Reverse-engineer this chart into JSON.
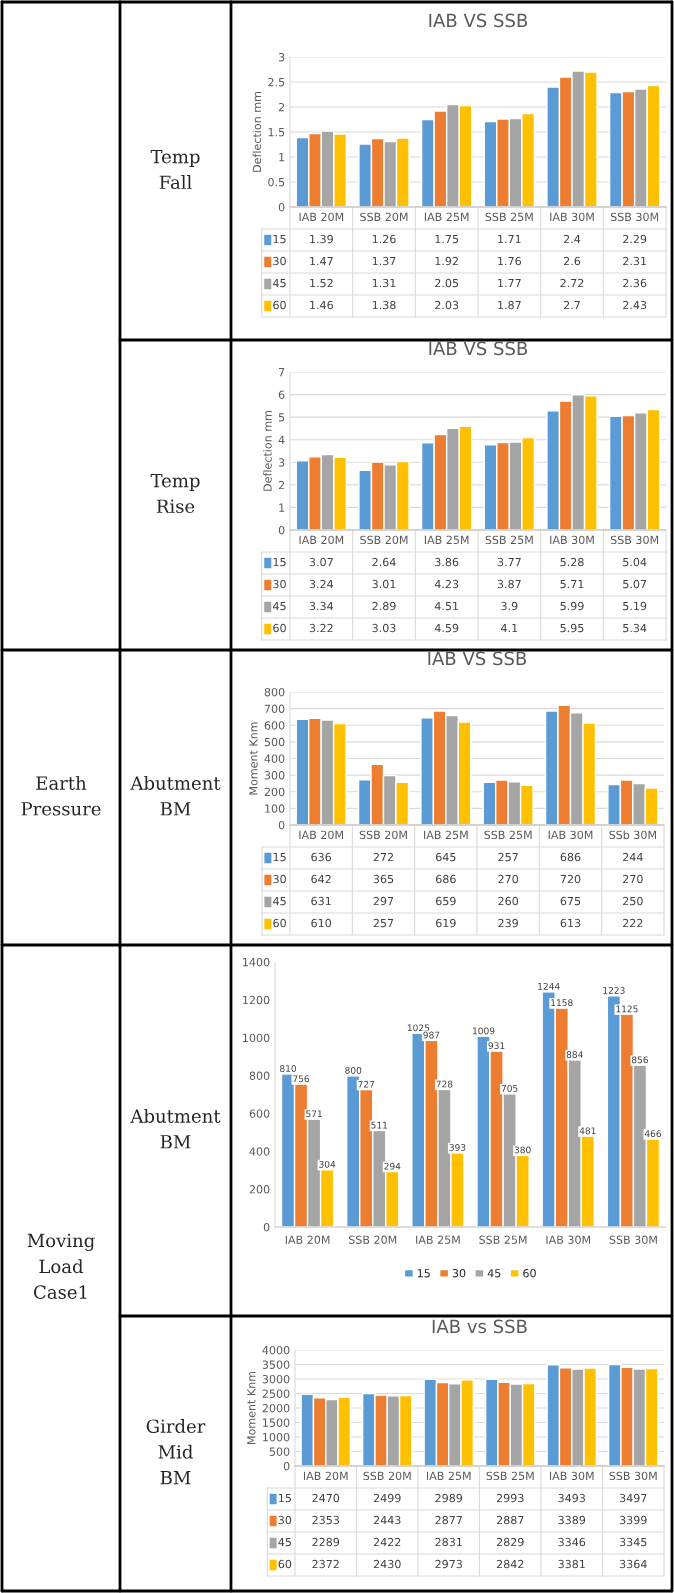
{
  "chart_data": [
    {
      "type": "bar",
      "title": "IAB VS SSB",
      "ylabel": "Deflection mm",
      "categories": [
        "IAB 20M",
        "SSB 20M",
        "IAB 25M",
        "SSB 25M",
        "IAB 30M",
        "SSB 30M"
      ],
      "series": [
        {
          "name": "15",
          "color": "#5b9bd5",
          "values": [
            1.39,
            1.26,
            1.75,
            1.71,
            2.4,
            2.29
          ]
        },
        {
          "name": "30",
          "color": "#ed7d31",
          "values": [
            1.47,
            1.37,
            1.92,
            1.76,
            2.6,
            2.31
          ]
        },
        {
          "name": "45",
          "color": "#a5a5a5",
          "values": [
            1.52,
            1.31,
            2.05,
            1.77,
            2.72,
            2.36
          ]
        },
        {
          "name": "60",
          "color": "#ffc000",
          "values": [
            1.46,
            1.38,
            2.03,
            1.87,
            2.7,
            2.43
          ]
        }
      ],
      "ylim": [
        0,
        3
      ],
      "yticks": [
        0,
        0.5,
        1,
        1.5,
        2,
        2.5,
        3
      ],
      "grid": "y",
      "legend": "bottom",
      "data_labels": true,
      "annotations": [
        "Temp Fall"
      ]
    },
    {
      "type": "bar",
      "title": "IAB VS SSB",
      "ylabel": "Deflection mm",
      "categories": [
        "IAB 20M",
        "SSB 20M",
        "IAB 25M",
        "SSB 25M",
        "IAB 30M",
        "SSB 30M"
      ],
      "series": [
        {
          "name": "15",
          "color": "#5b9bd5",
          "values": [
            3.07,
            2.64,
            3.86,
            3.77,
            5.28,
            5.04
          ]
        },
        {
          "name": "30",
          "color": "#ed7d31",
          "values": [
            3.24,
            3.01,
            4.23,
            3.87,
            5.71,
            5.07
          ]
        },
        {
          "name": "45",
          "color": "#a5a5a5",
          "values": [
            3.34,
            2.89,
            4.51,
            3.9,
            5.99,
            5.19
          ]
        },
        {
          "name": "60",
          "color": "#ffc000",
          "values": [
            3.22,
            3.03,
            4.59,
            4.1,
            5.95,
            5.34
          ]
        }
      ],
      "ylim": [
        0,
        7
      ],
      "yticks": [
        0,
        1,
        2,
        3,
        4,
        5,
        6,
        7
      ],
      "grid": "y",
      "legend": "bottom",
      "data_labels": true,
      "annotations": [
        "Temp Rise"
      ]
    },
    {
      "type": "bar",
      "title": "IAB VS SSB",
      "ylabel": "Moment Knm",
      "categories": [
        "IAB 20M",
        "SSB 20M",
        "IAB 25M",
        "SSB 25M",
        "IAB 30M",
        "SSb 30M"
      ],
      "series": [
        {
          "name": "15",
          "color": "#5b9bd5",
          "values": [
            636,
            272,
            645,
            257,
            686,
            244
          ]
        },
        {
          "name": "30",
          "color": "#ed7d31",
          "values": [
            642,
            365,
            686,
            270,
            720,
            270
          ]
        },
        {
          "name": "45",
          "color": "#a5a5a5",
          "values": [
            631,
            297,
            659,
            260,
            675,
            250
          ]
        },
        {
          "name": "60",
          "color": "#ffc000",
          "values": [
            610,
            257,
            619,
            239,
            613,
            222
          ]
        }
      ],
      "ylim": [
        0,
        800
      ],
      "yticks": [
        0,
        100,
        200,
        300,
        400,
        500,
        600,
        700,
        800
      ],
      "grid": "y",
      "legend": "bottom",
      "data_labels": true,
      "annotations": [
        "Abutment BM",
        "Earth Pressure"
      ]
    },
    {
      "type": "bar",
      "categories": [
        "IAB 20M",
        "SSB 20M",
        "IAB 25M",
        "SSB 25M",
        "IAB 30M",
        "SSB 30M"
      ],
      "series": [
        {
          "name": "15",
          "color": "#5b9bd5",
          "values": [
            810,
            800,
            1025,
            1009,
            1244,
            1223
          ]
        },
        {
          "name": "30",
          "color": "#ed7d31",
          "values": [
            756,
            727,
            987,
            931,
            1158,
            1125
          ]
        },
        {
          "name": "45",
          "color": "#a5a5a5",
          "values": [
            571,
            511,
            728,
            705,
            884,
            856
          ]
        },
        {
          "name": "60",
          "color": "#ffc000",
          "values": [
            304,
            294,
            393,
            380,
            481,
            466
          ]
        }
      ],
      "ylim": [
        0,
        1400
      ],
      "yticks": [
        0,
        200,
        400,
        600,
        800,
        1000,
        1200,
        1400
      ],
      "legend": "bottom",
      "data_labels": true,
      "annotations": [
        "Abutment BM",
        "Moving Load Case1"
      ]
    },
    {
      "type": "bar",
      "title": "IAB vs SSB",
      "ylabel": "Moment Knm",
      "categories": [
        "IAB 20M",
        "SSB 20M",
        "IAB 25M",
        "SSB 25M",
        "IAB 30M",
        "SSB 30M"
      ],
      "series": [
        {
          "name": "15",
          "color": "#5b9bd5",
          "values": [
            2470,
            2499,
            2989,
            2993,
            3493,
            3497
          ]
        },
        {
          "name": "30",
          "color": "#ed7d31",
          "values": [
            2353,
            2443,
            2877,
            2887,
            3389,
            3399
          ]
        },
        {
          "name": "45",
          "color": "#a5a5a5",
          "values": [
            2289,
            2422,
            2831,
            2829,
            3346,
            3345
          ]
        },
        {
          "name": "60",
          "color": "#ffc000",
          "values": [
            2372,
            2430,
            2973,
            2842,
            3381,
            3364
          ]
        }
      ],
      "ylim": [
        0,
        4000
      ],
      "yticks": [
        0,
        500,
        1000,
        1500,
        2000,
        2500,
        3000,
        3500,
        4000
      ],
      "grid": "y",
      "legend": "bottom",
      "data_labels": true,
      "annotations": [
        "Girder Mid BM"
      ]
    }
  ]
}
